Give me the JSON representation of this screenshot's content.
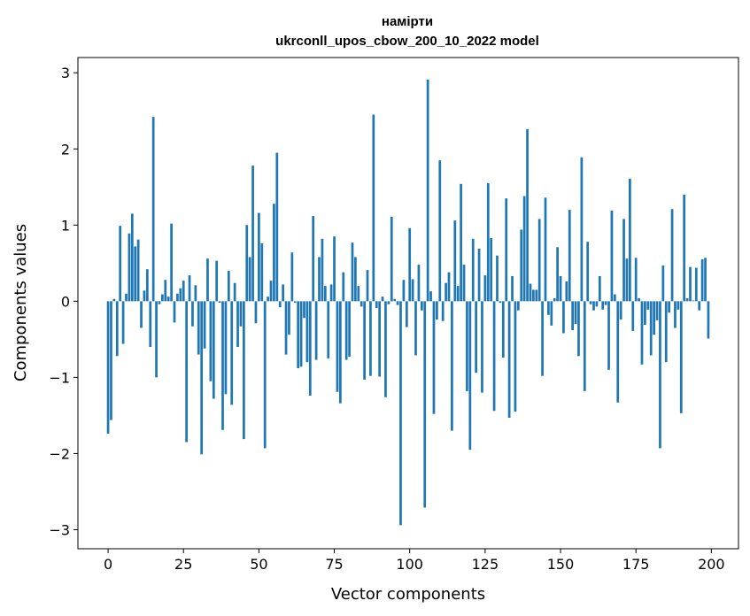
{
  "chart_data": {
    "type": "bar",
    "title": "намірти",
    "subtitle": "ukrconll_upos_cbow_200_10_2022 model",
    "xlabel": "Vector components",
    "ylabel": "Components values",
    "xlim": [
      -10,
      209
    ],
    "ylim": [
      -3.25,
      3.2
    ],
    "xticks": [
      0,
      25,
      50,
      75,
      100,
      125,
      150,
      175,
      200
    ],
    "xtick_labels": [
      "0",
      "25",
      "50",
      "75",
      "100",
      "125",
      "150",
      "175",
      "200"
    ],
    "yticks": [
      -3,
      -2,
      -1,
      0,
      1,
      2,
      3
    ],
    "ytick_labels": [
      "−3",
      "−2",
      "−1",
      "0",
      "1",
      "2",
      "3"
    ],
    "grid": false,
    "bar_color": "#1f77b4",
    "x": [
      0,
      1,
      2,
      3,
      4,
      5,
      6,
      7,
      8,
      9,
      10,
      11,
      12,
      13,
      14,
      15,
      16,
      17,
      18,
      19,
      20,
      21,
      22,
      23,
      24,
      25,
      26,
      27,
      28,
      29,
      30,
      31,
      32,
      33,
      34,
      35,
      36,
      37,
      38,
      39,
      40,
      41,
      42,
      43,
      44,
      45,
      46,
      47,
      48,
      49,
      50,
      51,
      52,
      53,
      54,
      55,
      56,
      57,
      58,
      59,
      60,
      61,
      62,
      63,
      64,
      65,
      66,
      67,
      68,
      69,
      70,
      71,
      72,
      73,
      74,
      75,
      76,
      77,
      78,
      79,
      80,
      81,
      82,
      83,
      84,
      85,
      86,
      87,
      88,
      89,
      90,
      91,
      92,
      93,
      94,
      95,
      96,
      97,
      98,
      99,
      100,
      101,
      102,
      103,
      104,
      105,
      106,
      107,
      108,
      109,
      110,
      111,
      112,
      113,
      114,
      115,
      116,
      117,
      118,
      119,
      120,
      121,
      122,
      123,
      124,
      125,
      126,
      127,
      128,
      129,
      130,
      131,
      132,
      133,
      134,
      135,
      136,
      137,
      138,
      139,
      140,
      141,
      142,
      143,
      144,
      145,
      146,
      147,
      148,
      149,
      150,
      151,
      152,
      153,
      154,
      155,
      156,
      157,
      158,
      159,
      160,
      161,
      162,
      163,
      164,
      165,
      166,
      167,
      168,
      169,
      170,
      171,
      172,
      173,
      174,
      175,
      176,
      177,
      178,
      179,
      180,
      181,
      182,
      183,
      184,
      185,
      186,
      187,
      188,
      189,
      190,
      191,
      192,
      193,
      194,
      195,
      196,
      197,
      198,
      199
    ],
    "values": [
      -1.74,
      -1.56,
      0.03,
      -0.72,
      0.99,
      -0.56,
      0.1,
      0.89,
      1.15,
      0.72,
      0.81,
      -0.35,
      0.14,
      0.42,
      -0.6,
      2.42,
      -1.0,
      -0.04,
      0.09,
      0.28,
      0.06,
      1.02,
      -0.28,
      0.1,
      0.17,
      0.27,
      -1.85,
      0.34,
      -0.33,
      0.21,
      -0.7,
      -2.01,
      -0.62,
      0.56,
      -1.05,
      -1.28,
      0.53,
      -0.02,
      -1.69,
      -1.22,
      0.4,
      -1.36,
      0.24,
      -0.6,
      -0.33,
      -1.81,
      1.0,
      0.58,
      1.78,
      -0.29,
      1.16,
      0.76,
      -1.93,
      0.06,
      0.27,
      1.28,
      1.95,
      -0.08,
      0.22,
      -0.7,
      -0.44,
      0.64,
      -0.02,
      -0.88,
      -0.86,
      -0.22,
      -0.8,
      -1.24,
      1.12,
      -0.77,
      0.58,
      0.82,
      0.2,
      -0.75,
      0.22,
      0.85,
      -1.19,
      -1.34,
      0.38,
      -0.77,
      -0.73,
      0.77,
      0.58,
      0.2,
      -0.07,
      -1.03,
      0.41,
      -0.98,
      2.45,
      -0.09,
      -0.99,
      0.06,
      -1.26,
      -0.04,
      1.11,
      0.03,
      -0.05,
      -2.94,
      0.28,
      -0.34,
      0.96,
      0.29,
      -0.71,
      0.48,
      -0.12,
      -2.71,
      2.91,
      0.13,
      -1.48,
      -0.24,
      1.85,
      -0.26,
      0.24,
      0.38,
      -1.7,
      1.06,
      0.2,
      1.54,
      0.48,
      -1.18,
      -1.95,
      0.82,
      -0.94,
      0.69,
      -1.2,
      0.34,
      1.55,
      0.83,
      -1.44,
      0.6,
      -0.02,
      -0.74,
      1.35,
      -1.53,
      0.33,
      -1.45,
      -0.12,
      0.94,
      1.38,
      2.26,
      0.23,
      0.15,
      0.15,
      1.08,
      -0.98,
      1.36,
      -0.18,
      -0.32,
      0.04,
      0.71,
      0.33,
      -0.42,
      0.26,
      1.2,
      -0.38,
      -0.3,
      -0.72,
      1.89,
      -1.18,
      0.78,
      -0.04,
      -0.12,
      -0.07,
      0.33,
      -0.11,
      -0.05,
      -0.9,
      1.19,
      0.09,
      -1.33,
      -0.24,
      1.08,
      0.56,
      1.61,
      -0.39,
      0.57,
      0.04,
      -0.83,
      -0.31,
      -0.11,
      -0.71,
      -0.44,
      -0.25,
      -1.93,
      0.47,
      -0.8,
      -0.15,
      1.21,
      -0.35,
      -0.11,
      -1.47,
      1.4,
      0.04,
      0.45,
      0.01,
      0.44,
      -0.12,
      0.55,
      0.57,
      -0.49
    ]
  }
}
